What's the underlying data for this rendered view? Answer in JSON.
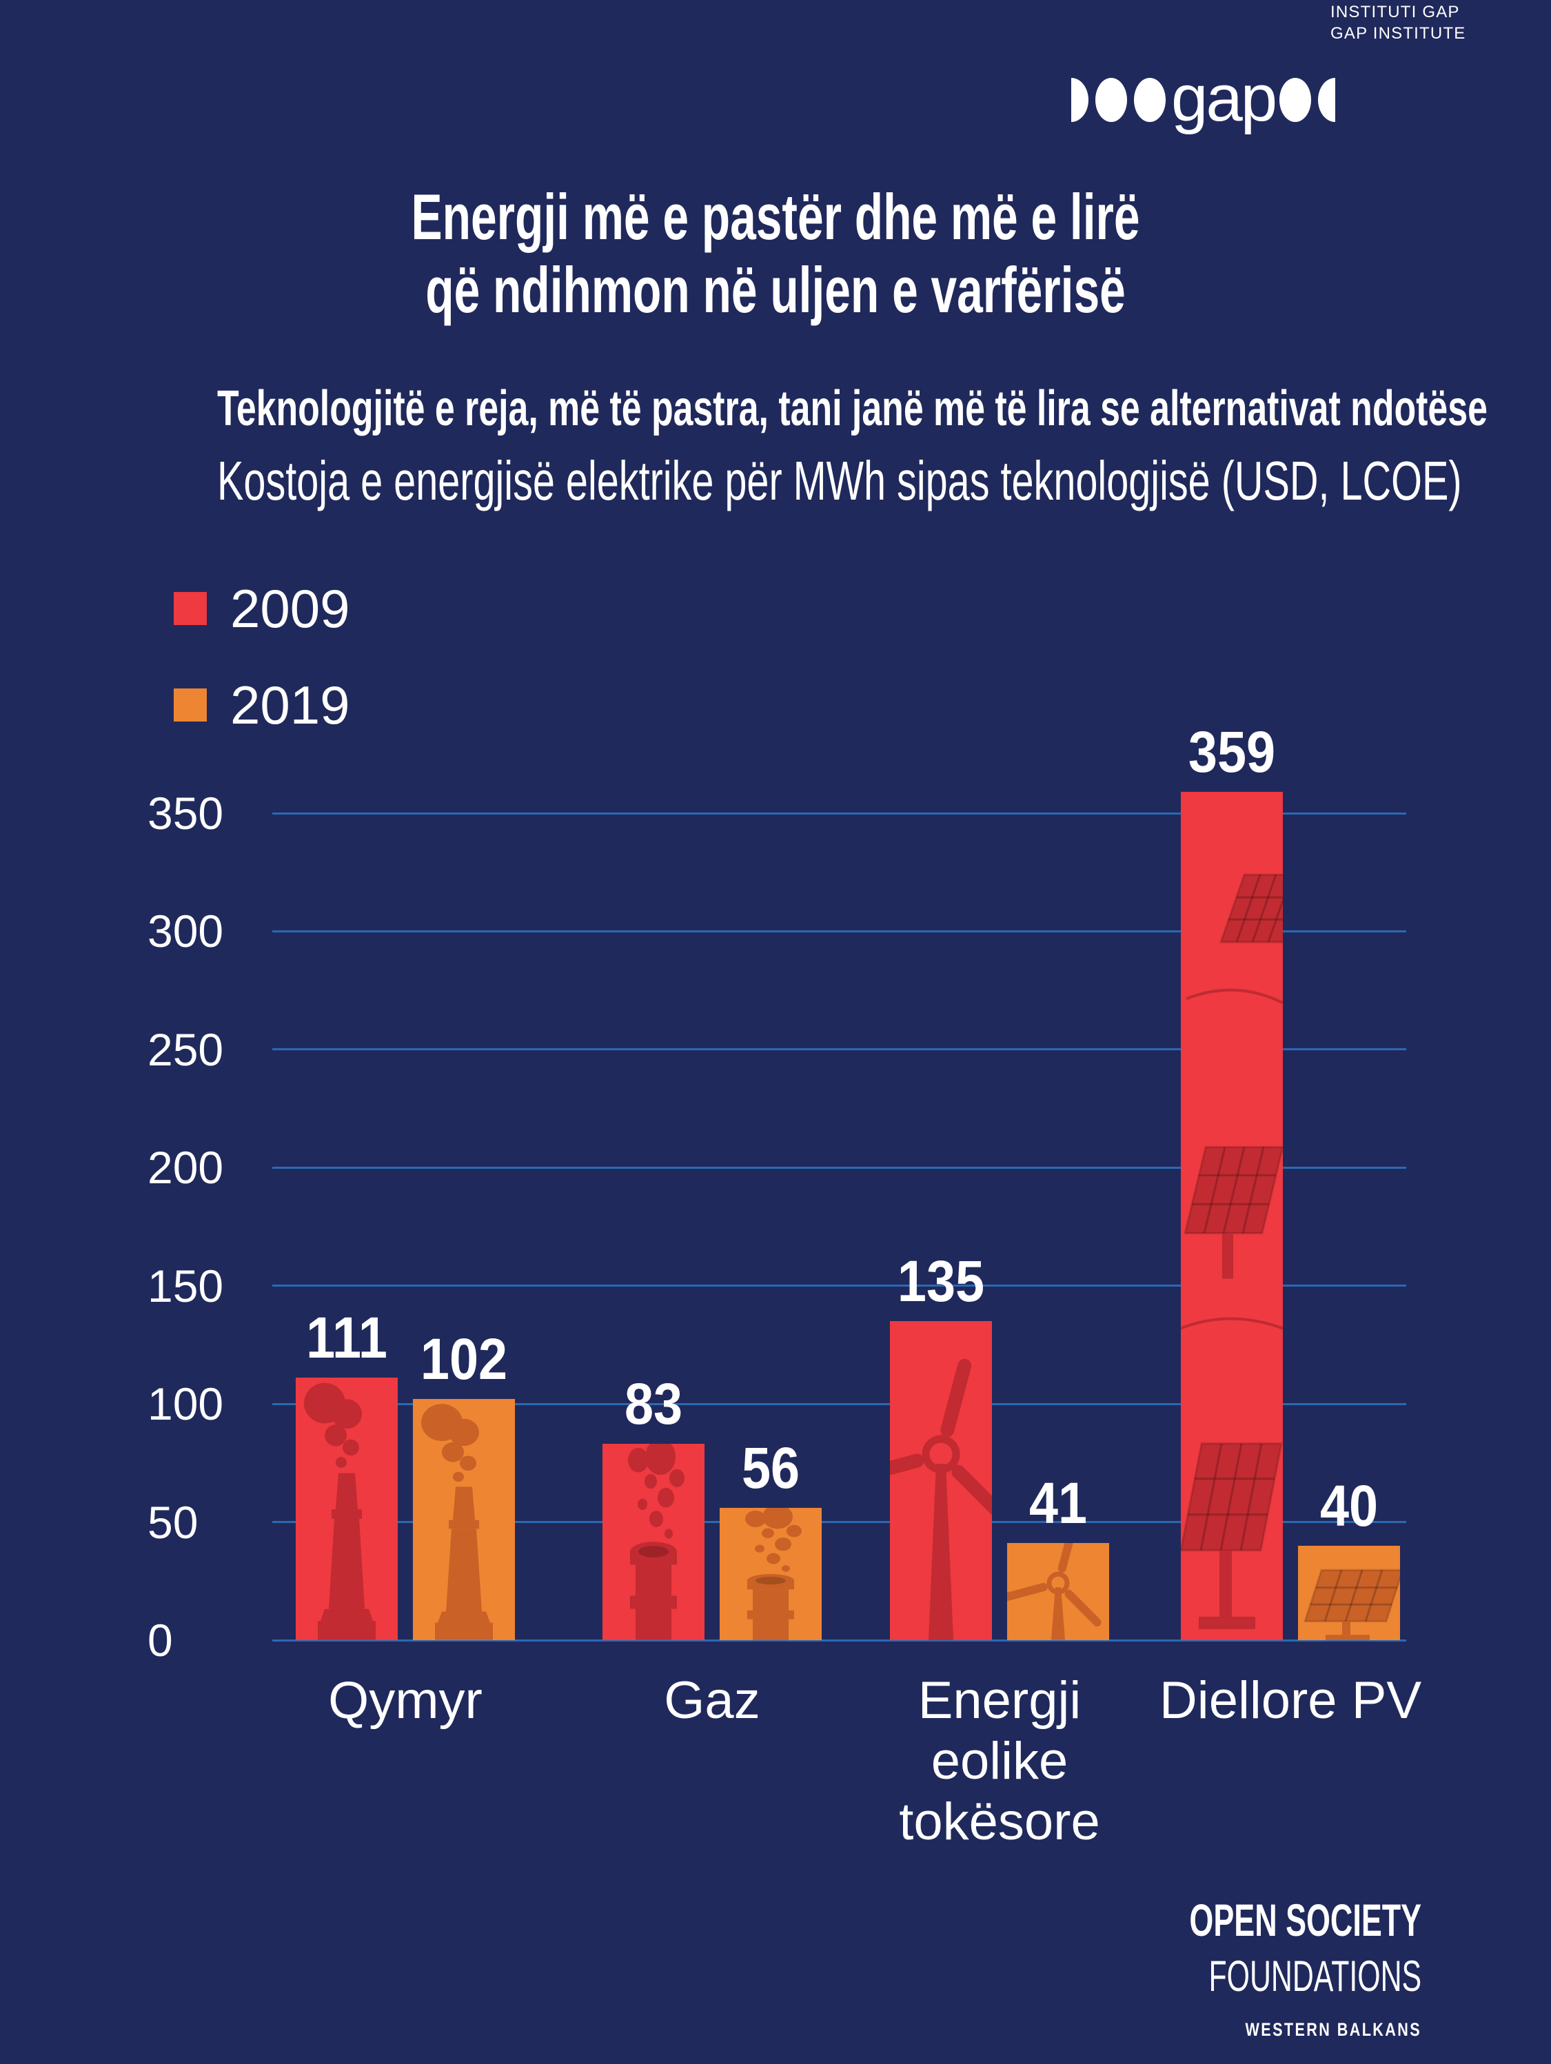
{
  "brand": {
    "wordmark": "gap",
    "tagline_line1": "INSTITUTI GAP",
    "tagline_line2": "GAP INSTITUTE"
  },
  "title_line1": "Energji më e pastër dhe më e lirë",
  "title_line2": "që ndihmon në uljen e varfërisë",
  "subtitle": "Teknologjitë e reja, më të pastra, tani janë më të lira se alternativat ndotëse",
  "chart_caption": "Kostoja e energjisë elektrike për MWh sipas teknologjisë (USD, LCOE)",
  "legend": [
    {
      "label": "2009",
      "color": "#ee3a40"
    },
    {
      "label": "2019",
      "color": "#ee8532"
    }
  ],
  "chart_data": {
    "type": "bar",
    "title": "Kostoja e energjisë elektrike për MWh sipas teknologjisë (USD, LCOE)",
    "categories": [
      "Qymyr",
      "Gaz",
      "Energji eolike tokësore",
      "Diellore PV"
    ],
    "category_lines": [
      [
        "Qymyr"
      ],
      [
        "Gaz"
      ],
      [
        "Energji",
        "eolike",
        "tokësore"
      ],
      [
        "Diellore PV"
      ]
    ],
    "category_icons": [
      "coal-chimney-icon",
      "gas-pipe-icon",
      "wind-turbine-icon",
      "solar-panel-icon"
    ],
    "series": [
      {
        "name": "2009",
        "color": "#ee3a40",
        "icon_color": "#c12b31",
        "values": [
          111,
          83,
          135,
          359
        ]
      },
      {
        "name": "2019",
        "color": "#ee8532",
        "icon_color": "#ca6127",
        "values": [
          102,
          56,
          41,
          40
        ]
      }
    ],
    "ylim": [
      0,
      350
    ],
    "yticks": [
      0,
      50,
      100,
      150,
      200,
      250,
      300,
      350
    ],
    "grid": true,
    "legend_position": "top-left",
    "value_labels": true,
    "xlabel": "",
    "ylabel": ""
  },
  "footer": {
    "line1": "OPEN SOCIETY",
    "line2": "FOUNDATIONS",
    "line3": "WESTERN BALKANS"
  },
  "colors": {
    "background": "#20295b",
    "gridline": "#2a6ab3",
    "text": "#ffffff",
    "red_2009": "#ee3a40",
    "orange_2019": "#ee8532",
    "icon_dark_red": "#c12b31",
    "icon_dark_orange": "#ca6127"
  }
}
